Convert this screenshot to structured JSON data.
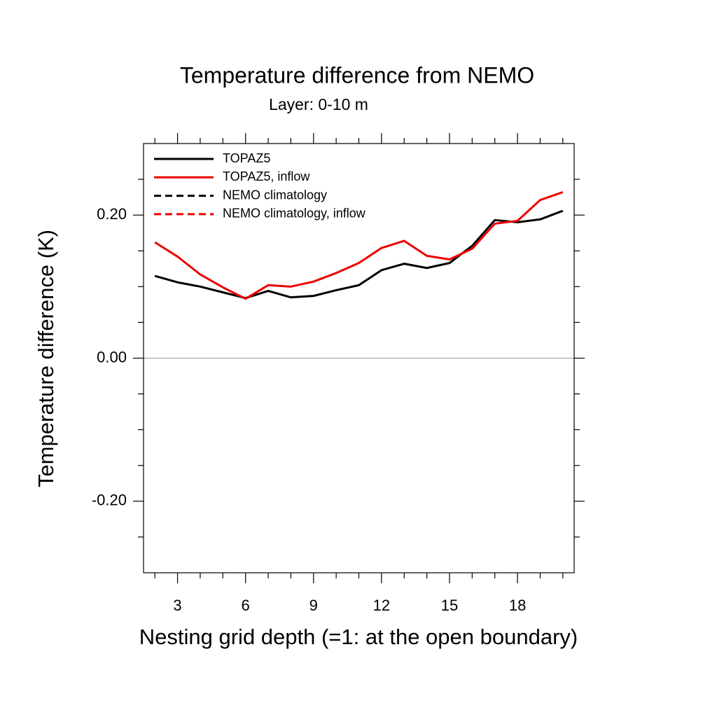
{
  "chart_data": {
    "type": "line",
    "title": "Temperature difference from NEMO",
    "subtitle": "Layer: 0-10 m",
    "x_label": "Nesting grid depth (=1: at the open boundary)",
    "y_label": "Temperature difference (K)",
    "x": [
      2,
      3,
      4,
      5,
      6,
      7,
      8,
      9,
      10,
      11,
      12,
      13,
      14,
      15,
      16,
      17,
      18,
      19,
      20
    ],
    "series": [
      {
        "name": "TOPAZ5",
        "color": "#000000",
        "dash": false,
        "values": [
          0.115,
          0.106,
          0.1,
          0.092,
          0.084,
          0.094,
          0.085,
          0.087,
          0.095,
          0.102,
          0.123,
          0.132,
          0.126,
          0.133,
          0.157,
          0.193,
          0.19,
          0.194,
          0.206
        ]
      },
      {
        "name": "TOPAZ5, inflow",
        "color": "#ee0000",
        "dash": false,
        "values": [
          0.162,
          0.142,
          0.117,
          0.099,
          0.083,
          0.102,
          0.1,
          0.107,
          0.119,
          0.133,
          0.154,
          0.164,
          0.143,
          0.138,
          0.153,
          0.188,
          0.192,
          0.221,
          0.232
        ]
      },
      {
        "name": "NEMO climatology",
        "color": "#000000",
        "dash": true,
        "values": [
          null,
          null,
          null,
          null,
          null,
          null,
          null,
          null,
          null,
          null,
          null,
          null,
          null,
          null,
          null,
          null,
          null,
          null,
          null
        ]
      },
      {
        "name": "NEMO climatology, inflow",
        "color": "#ee0000",
        "dash": true,
        "values": [
          null,
          null,
          null,
          null,
          null,
          null,
          null,
          null,
          null,
          null,
          null,
          null,
          null,
          null,
          null,
          null,
          null,
          null,
          null
        ]
      }
    ],
    "xlim": [
      1.5,
      20.5
    ],
    "xticks": [
      3,
      6,
      9,
      12,
      15,
      18
    ],
    "xticks_minor": [
      2,
      4,
      5,
      7,
      8,
      10,
      11,
      13,
      14,
      16,
      17,
      19,
      20
    ],
    "ylim": [
      -0.3,
      0.3
    ],
    "yticks": [
      {
        "value": -0.2,
        "label": "-0.20"
      },
      {
        "value": 0,
        "label": "0.00"
      },
      {
        "value": 0.2,
        "label": "0.20"
      }
    ],
    "yticks_minor": [
      -0.25,
      -0.15,
      -0.1,
      -0.05,
      0.05,
      0.1,
      0.15,
      0.25
    ],
    "hline": 0,
    "legend": "upper left"
  }
}
